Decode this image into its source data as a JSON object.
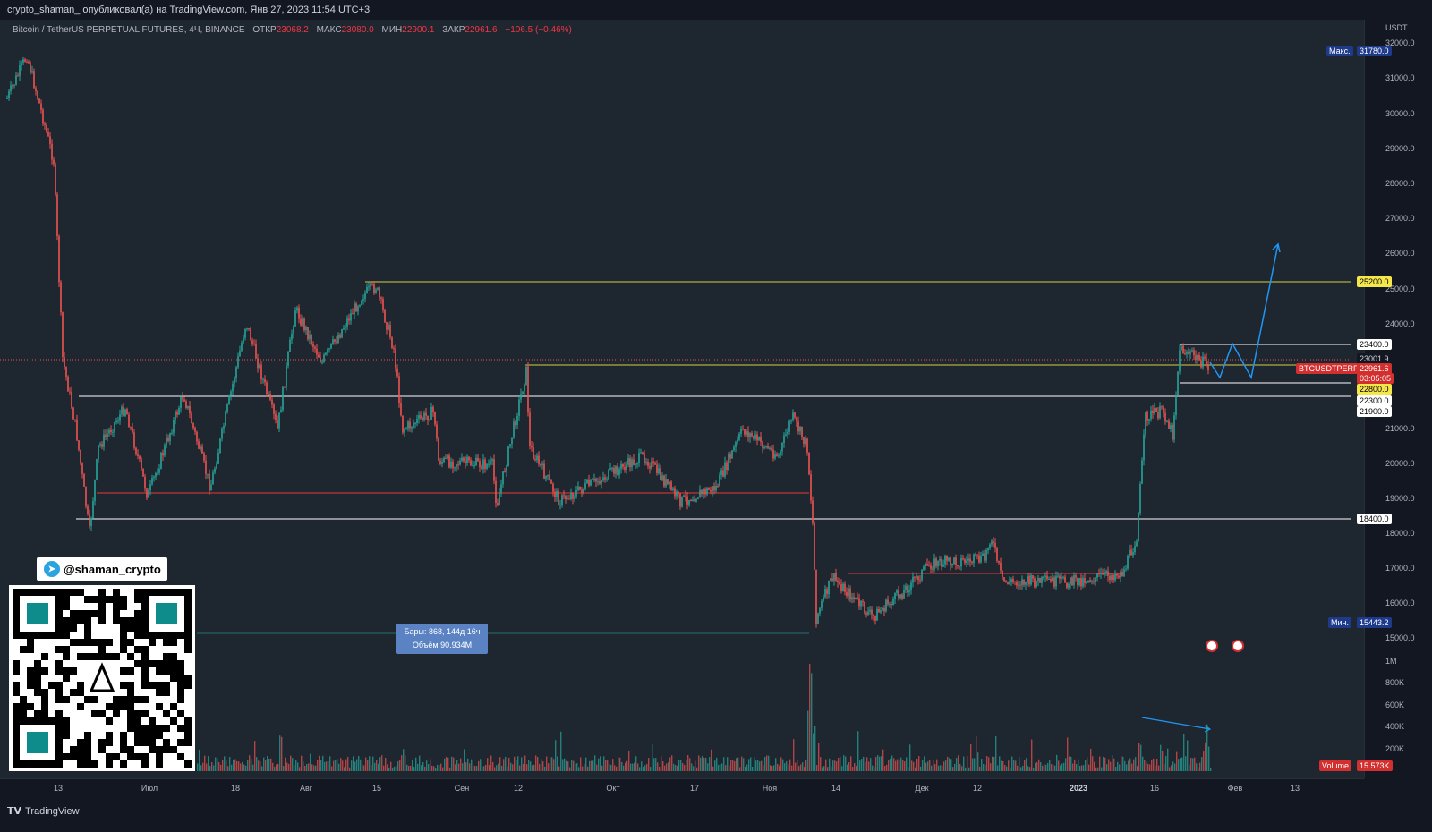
{
  "header": {
    "publish_line": "crypto_shaman_ опубликовал(а) на TradingView.com, Янв 27, 2023 11:54 UTC+3"
  },
  "legend": {
    "symbol": "Bitcoin / TetherUS PERPETUAL FUTURES, 4Ч, BINANCE",
    "open_label": "ОТКР",
    "open": "23068.2",
    "high_label": "МАКС",
    "high": "23080.0",
    "low_label": "МИН",
    "low": "22900.1",
    "close_label": "ЗАКР",
    "close": "22961.6",
    "change": "−106.5 (−0.46%)"
  },
  "price_axis": {
    "currency": "USDT",
    "labels": [
      "32000.0",
      "31000.0",
      "30000.0",
      "29000.0",
      "28000.0",
      "27000.0",
      "26000.0",
      "25000.0",
      "24000.0",
      "21000.0",
      "20000.0",
      "19000.0",
      "18000.0",
      "17000.0",
      "16000.0",
      "15000.0"
    ],
    "volume_labels": [
      "1M",
      "800K",
      "600K",
      "400K",
      "200K"
    ]
  },
  "tags": {
    "max_label": "Макс.",
    "max_value": "31780.0",
    "min_label": "Мин.",
    "min_value": "15443.2",
    "level_25200": "25200.0",
    "level_23400": "23400.0",
    "level_23001": "23001.9",
    "symbol_tag": "BTCUSDTPERP",
    "last_price": "22961.6",
    "countdown": "03:05:05",
    "level_22800": "22800.0",
    "level_22300": "22300.0",
    "level_21900": "21900.0",
    "level_18400": "18400.0",
    "volume_label": "Volume",
    "volume_value": "15.573K"
  },
  "time_axis": [
    "13",
    "Июл",
    "18",
    "Авг",
    "15",
    "Сен",
    "12",
    "Окт",
    "17",
    "Ноя",
    "14",
    "Дек",
    "12",
    "2023",
    "16",
    "Фев",
    "13"
  ],
  "range_box": {
    "line1": "Бары: 868, 144д 16ч",
    "line2": "Объём 90.934M"
  },
  "telegram": {
    "handle": "@shaman_crypto"
  },
  "footer": {
    "brand": "TradingView"
  },
  "colors": {
    "up": "#26a69a",
    "down": "#ef5350",
    "yellow_level": "#f0e64a",
    "white_level": "#ffffff",
    "red_level": "#e53935",
    "projection": "#2196f3"
  }
}
